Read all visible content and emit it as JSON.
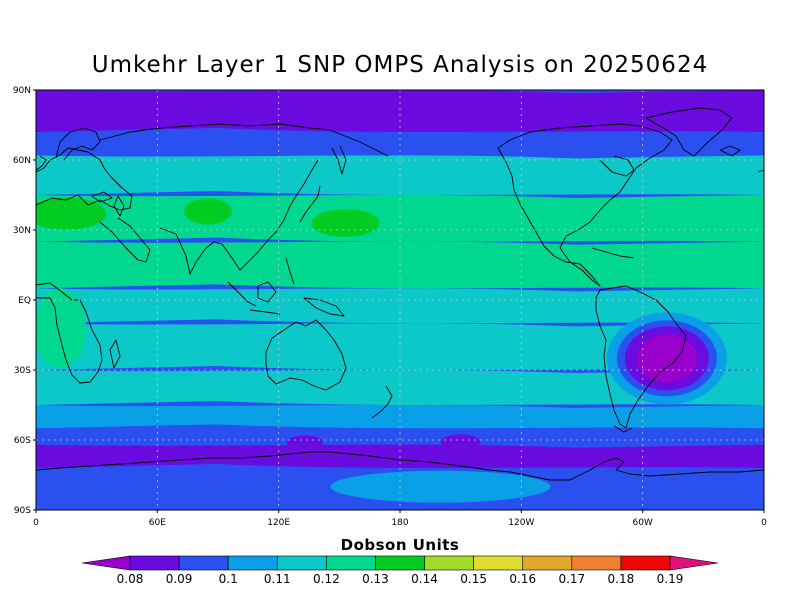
{
  "title": "Umkehr Layer 1 SNP OMPS Analysis on 20250624",
  "map": {
    "projection": "equirectangular",
    "lon_range": [
      0,
      360
    ],
    "lat_range": [
      -90,
      90
    ],
    "grid": true,
    "lat_ticks": [
      {
        "lat": 90,
        "label": "90N"
      },
      {
        "lat": 60,
        "label": "60N"
      },
      {
        "lat": 30,
        "label": "30N"
      },
      {
        "lat": 0,
        "label": "EQ"
      },
      {
        "lat": -30,
        "label": "30S"
      },
      {
        "lat": -60,
        "label": "60S"
      },
      {
        "lat": -90,
        "label": "90S"
      }
    ],
    "lon_ticks": [
      {
        "lon": 0,
        "label": "0"
      },
      {
        "lon": 60,
        "label": "60E"
      },
      {
        "lon": 120,
        "label": "120E"
      },
      {
        "lon": 180,
        "label": "180"
      },
      {
        "lon": 240,
        "label": "120W"
      },
      {
        "lon": 300,
        "label": "60W"
      },
      {
        "lon": 360,
        "label": "0"
      }
    ]
  },
  "colorbar": {
    "title": "Dobson Units",
    "levels": [
      0.08,
      0.09,
      0.1,
      0.11,
      0.12,
      0.13,
      0.14,
      0.15,
      0.16,
      0.17,
      0.18,
      0.19
    ],
    "labels": [
      "0.08",
      "0.09",
      "0.1",
      "0.11",
      "0.12",
      "0.13",
      "0.14",
      "0.15",
      "0.16",
      "0.17",
      "0.18",
      "0.19"
    ],
    "colors": [
      "#9900cc",
      "#6a0ce0",
      "#2a50f0",
      "#0aa0e8",
      "#0cc8c8",
      "#00d890",
      "#00cc22",
      "#a0dc28",
      "#e0dc30",
      "#e0a828",
      "#f08030",
      "#f00808",
      "#e0107a"
    ]
  },
  "chart_data": {
    "type": "heatmap",
    "title": "Umkehr Layer 1 SNP OMPS Analysis on 20250624",
    "units": "Dobson Units",
    "variable": "Umkehr Layer 1 ozone",
    "x_range": [
      0,
      360
    ],
    "y_range": [
      -90,
      90
    ],
    "zonal_profile": {
      "lat": [
        90,
        72,
        62,
        45,
        25,
        5,
        -10,
        -30,
        -45,
        -55,
        -62,
        -72,
        -90
      ],
      "value": [
        0.085,
        0.095,
        0.115,
        0.125,
        0.125,
        0.118,
        0.115,
        0.115,
        0.105,
        0.095,
        0.085,
        0.095,
        0.095
      ]
    },
    "features": [
      {
        "description": "Mediterranean / North Africa maximum",
        "lon": 15,
        "lat": 37,
        "value": 0.135
      },
      {
        "description": "Central Asia maximum",
        "lon": 85,
        "lat": 38,
        "value": 0.135
      },
      {
        "description": "Pacific east of Japan maximum",
        "lon": 153,
        "lat": 33,
        "value": 0.135
      },
      {
        "description": "Southern Brazil minimum",
        "lon": 312,
        "lat": -25,
        "value": 0.085
      },
      {
        "description": "Southern Ocean minimum (south of Australia)",
        "lon": 133,
        "lat": -61,
        "value": 0.085
      },
      {
        "description": "Southern Ocean minimum (South Pacific)",
        "lon": 210,
        "lat": -61,
        "value": 0.085
      },
      {
        "description": "Antarctic interior band",
        "lon": 200,
        "lat": -80,
        "value": 0.105
      }
    ]
  }
}
